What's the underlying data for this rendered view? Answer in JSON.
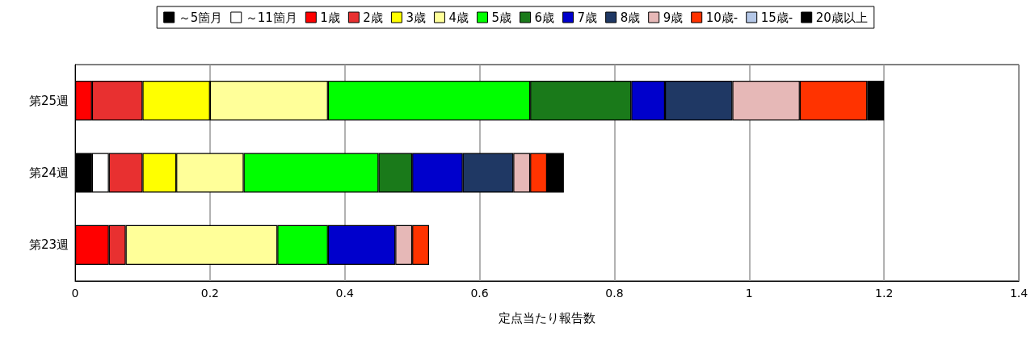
{
  "chart_data": {
    "type": "bar",
    "orientation": "horizontal",
    "stacked": true,
    "xlabel": "定点当たり報告数",
    "categories": [
      "第25週",
      "第24週",
      "第23週"
    ],
    "xlim": [
      0,
      1.4
    ],
    "xticks": [
      0,
      0.2,
      0.4,
      0.6,
      0.8,
      1,
      1.2,
      1.4
    ],
    "grid": "x",
    "legend": "top",
    "series": [
      {
        "name": "～5箇月",
        "color": "#000000",
        "values": [
          null,
          0.025,
          null
        ]
      },
      {
        "name": "～11箇月",
        "color": "#ffffff",
        "values": [
          null,
          0.025,
          null
        ]
      },
      {
        "name": "1歳",
        "color": "#ff0000",
        "values": [
          0.025,
          null,
          0.05
        ]
      },
      {
        "name": "2歳",
        "color": "#e83030",
        "values": [
          0.075,
          0.05,
          0.025
        ]
      },
      {
        "name": "3歳",
        "color": "#ffff00",
        "values": [
          0.1,
          0.05,
          null
        ]
      },
      {
        "name": "4歳",
        "color": "#ffff99",
        "values": [
          0.175,
          0.1,
          0.225
        ]
      },
      {
        "name": "5歳",
        "color": "#00ff00",
        "values": [
          0.3,
          0.2,
          0.075
        ]
      },
      {
        "name": "6歳",
        "color": "#1a7a1a",
        "values": [
          0.15,
          0.05,
          null
        ]
      },
      {
        "name": "7歳",
        "color": "#0000cc",
        "values": [
          0.05,
          0.075,
          0.1
        ]
      },
      {
        "name": "8歳",
        "color": "#1f3864",
        "values": [
          0.1,
          0.075,
          null
        ]
      },
      {
        "name": "9歳",
        "color": "#e6b8b7",
        "values": [
          0.1,
          0.025,
          0.025
        ]
      },
      {
        "name": "10歳-",
        "color": "#ff3300",
        "values": [
          0.1,
          0.025,
          0.025
        ]
      },
      {
        "name": "15歳-",
        "color": "#b4c7e7",
        "values": [
          null,
          null,
          null
        ]
      },
      {
        "name": "20歳以上",
        "color": "#000000",
        "values": [
          0.025,
          0.025,
          null
        ]
      }
    ]
  }
}
